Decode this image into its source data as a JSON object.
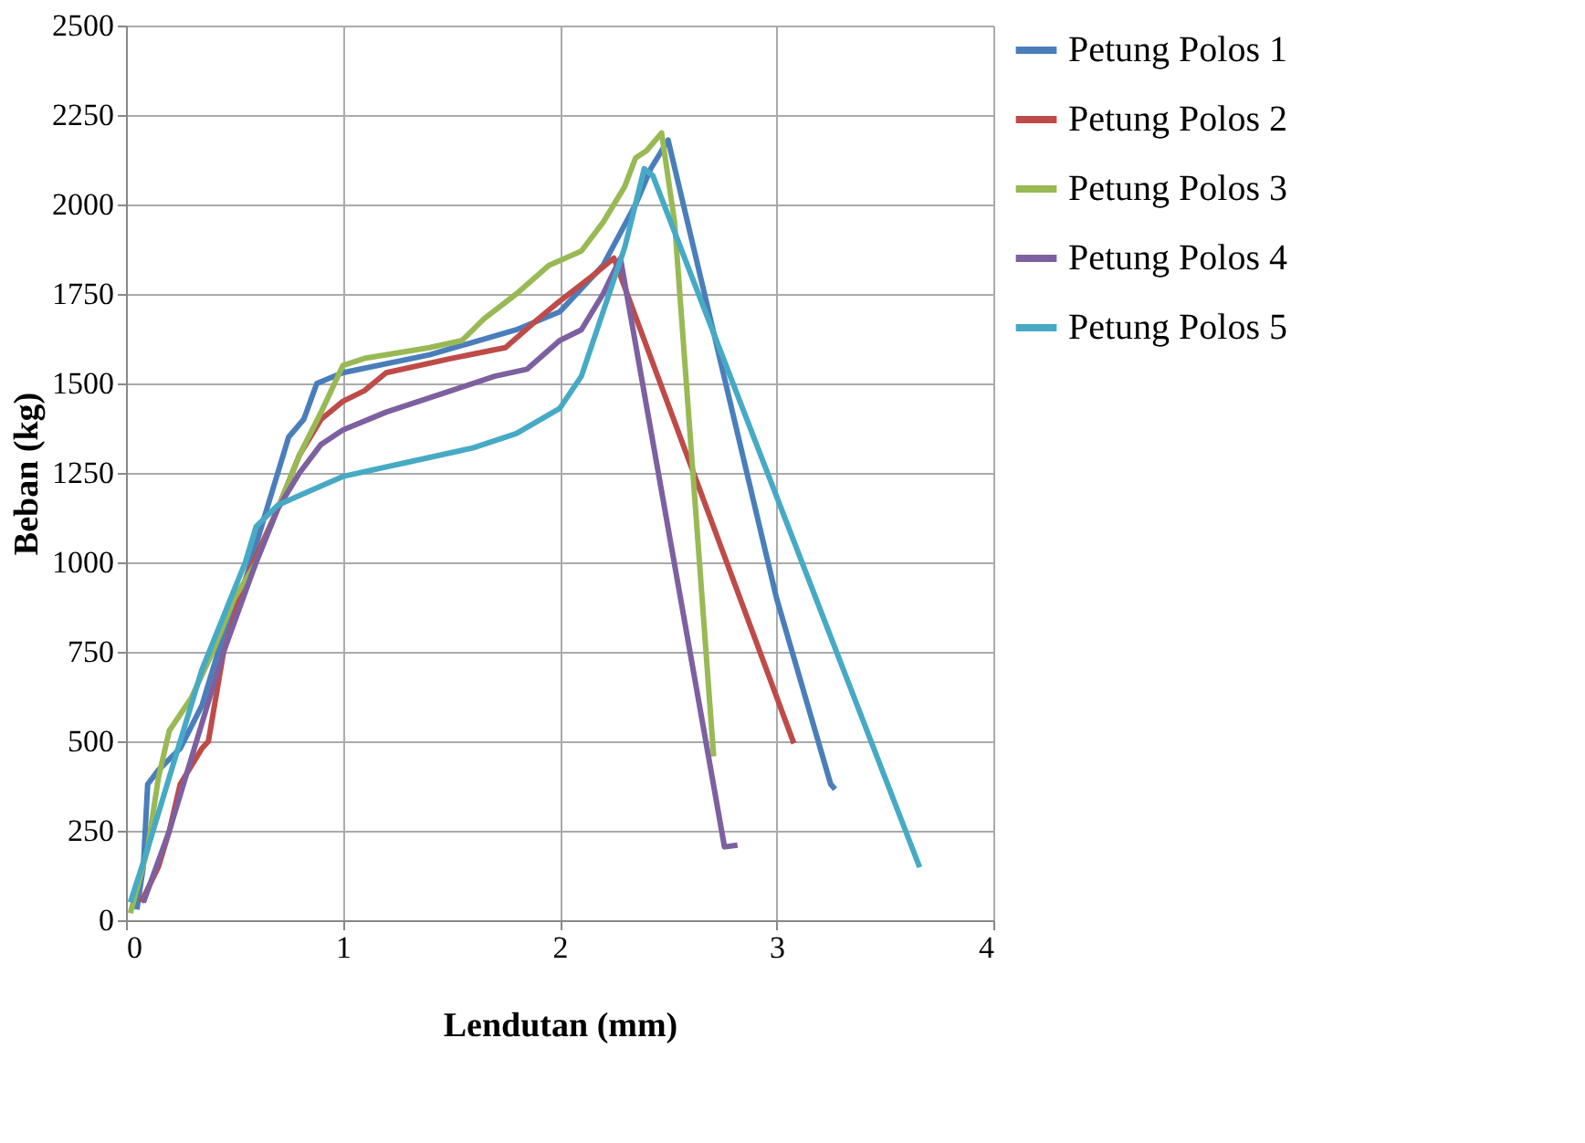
{
  "chart_data": {
    "type": "line",
    "xlabel": "Lendutan (mm)",
    "ylabel": "Beban (kg)",
    "xlim": [
      0,
      4
    ],
    "xticks": [
      0,
      1,
      2,
      3,
      4
    ],
    "ylim": [
      0,
      2500
    ],
    "yticks": [
      0,
      250,
      500,
      750,
      1000,
      1250,
      1500,
      1750,
      2000,
      2250,
      2500
    ],
    "grid": true,
    "legend": "right",
    "marker": "none",
    "line_style": "solid",
    "series": [
      {
        "name": "Petung Polos 1",
        "color": "#4a7ebb",
        "x": [
          0.05,
          0.08,
          0.1,
          0.15,
          0.25,
          0.35,
          0.45,
          0.55,
          0.65,
          0.75,
          0.82,
          0.88,
          1.0,
          1.4,
          1.8,
          2.0,
          2.2,
          2.35,
          2.42,
          2.5,
          3.0,
          3.25,
          3.27
        ],
        "values": [
          30,
          150,
          380,
          420,
          480,
          600,
          800,
          950,
          1150,
          1350,
          1400,
          1500,
          1530,
          1580,
          1650,
          1700,
          1830,
          2000,
          2100,
          2180,
          900,
          380,
          366
        ]
      },
      {
        "name": "Petung Polos 2",
        "color": "#be4b48",
        "x": [
          0.07,
          0.15,
          0.2,
          0.25,
          0.35,
          0.38,
          0.45,
          0.55,
          0.7,
          0.8,
          0.9,
          1.0,
          1.1,
          1.2,
          1.5,
          1.75,
          1.9,
          2.0,
          2.15,
          2.25,
          3.08
        ],
        "values": [
          50,
          150,
          250,
          380,
          480,
          500,
          750,
          950,
          1150,
          1300,
          1400,
          1450,
          1480,
          1530,
          1570,
          1600,
          1680,
          1730,
          1800,
          1850,
          494
        ]
      },
      {
        "name": "Petung Polos 3",
        "color": "#98b954",
        "x": [
          0.02,
          0.1,
          0.15,
          0.2,
          0.3,
          0.4,
          0.5,
          0.6,
          0.7,
          0.8,
          0.9,
          1.0,
          1.1,
          1.4,
          1.55,
          1.65,
          1.8,
          1.95,
          2.1,
          2.2,
          2.3,
          2.35,
          2.4,
          2.47,
          2.53,
          2.71
        ],
        "values": [
          20,
          200,
          400,
          530,
          620,
          750,
          900,
          1000,
          1150,
          1300,
          1420,
          1550,
          1570,
          1600,
          1620,
          1680,
          1750,
          1830,
          1870,
          1950,
          2050,
          2130,
          2150,
          2200,
          1950,
          458
        ]
      },
      {
        "name": "Petung Polos 4",
        "color": "#7d60a0",
        "x": [
          0.08,
          0.2,
          0.3,
          0.45,
          0.6,
          0.7,
          0.8,
          0.9,
          1.0,
          1.2,
          1.5,
          1.7,
          1.85,
          2.0,
          2.1,
          2.2,
          2.28,
          2.76,
          2.82
        ],
        "values": [
          50,
          250,
          450,
          750,
          1000,
          1150,
          1250,
          1330,
          1370,
          1420,
          1480,
          1520,
          1540,
          1620,
          1650,
          1750,
          1850,
          205,
          210
        ]
      },
      {
        "name": "Petung Polos 5",
        "color": "#46aac5",
        "x": [
          0.02,
          0.1,
          0.2,
          0.3,
          0.35,
          0.45,
          0.55,
          0.6,
          0.7,
          0.85,
          1.0,
          1.3,
          1.6,
          1.8,
          2.0,
          2.1,
          2.2,
          2.3,
          2.39,
          2.43,
          3.66
        ],
        "values": [
          50,
          200,
          400,
          600,
          700,
          850,
          1000,
          1100,
          1160,
          1200,
          1240,
          1280,
          1320,
          1360,
          1430,
          1520,
          1700,
          1880,
          2100,
          2080,
          148
        ]
      }
    ]
  }
}
